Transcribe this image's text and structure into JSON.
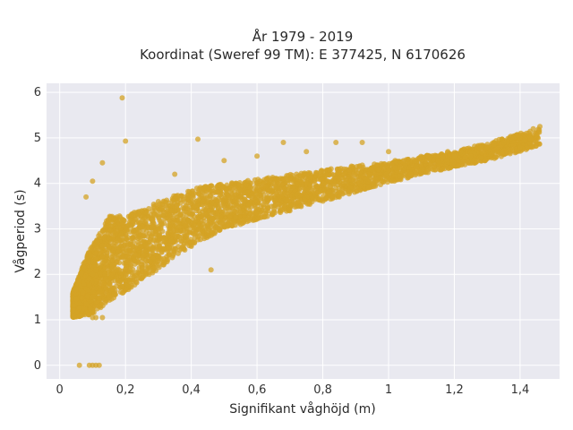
{
  "chart_data": {
    "type": "scatter",
    "title_line1": "År 1979 - 2019",
    "title_line2": "Koordinat (Sweref 99 TM): E 377425, N 6170626",
    "xlabel": "Signifikant våghöjd (m)",
    "ylabel": "Vågperiod (s)",
    "xlim": [
      -0.04,
      1.52
    ],
    "ylim": [
      -0.3,
      6.2
    ],
    "x_ticks": [
      {
        "value": 0,
        "label": "0"
      },
      {
        "value": 0.2,
        "label": "0,2"
      },
      {
        "value": 0.4,
        "label": "0,4"
      },
      {
        "value": 0.6,
        "label": "0,6"
      },
      {
        "value": 0.8,
        "label": "0,8"
      },
      {
        "value": 1.0,
        "label": "1"
      },
      {
        "value": 1.2,
        "label": "1,2"
      },
      {
        "value": 1.4,
        "label": "1,4"
      }
    ],
    "y_ticks": [
      {
        "value": 0,
        "label": "0"
      },
      {
        "value": 1,
        "label": "1"
      },
      {
        "value": 2,
        "label": "2"
      },
      {
        "value": 3,
        "label": "3"
      },
      {
        "value": 4,
        "label": "4"
      },
      {
        "value": 5,
        "label": "5"
      },
      {
        "value": 6,
        "label": "6"
      }
    ],
    "grid": true,
    "colors": {
      "marker": "#d4a326",
      "plot_bg": "#e9e9f0",
      "grid": "#ffffff"
    },
    "series": [
      {
        "values": [
          [
            0.05,
            1.45
          ],
          [
            0.06,
            1.25
          ],
          [
            0.07,
            1.6
          ],
          [
            0.08,
            1.35
          ],
          [
            0.09,
            1.9
          ],
          [
            0.1,
            1.2
          ],
          [
            0.1,
            1.5
          ],
          [
            0.11,
            2.1
          ],
          [
            0.12,
            1.7
          ],
          [
            0.12,
            1.3
          ],
          [
            0.13,
            2.4
          ],
          [
            0.14,
            1.9
          ],
          [
            0.15,
            2.6
          ],
          [
            0.15,
            1.5
          ],
          [
            0.16,
            2.2
          ],
          [
            0.17,
            2.9
          ],
          [
            0.18,
            1.8
          ],
          [
            0.18,
            2.5
          ],
          [
            0.19,
            3.1
          ],
          [
            0.2,
            2.3
          ],
          [
            0.2,
            2.8
          ],
          [
            0.22,
            3.3
          ],
          [
            0.22,
            2.0
          ],
          [
            0.24,
            2.9
          ],
          [
            0.25,
            3.4
          ],
          [
            0.26,
            2.5
          ],
          [
            0.28,
            3.2
          ],
          [
            0.3,
            3.0
          ],
          [
            0.3,
            3.6
          ],
          [
            0.32,
            2.8
          ],
          [
            0.34,
            3.4
          ],
          [
            0.35,
            3.2
          ],
          [
            0.38,
            3.6
          ],
          [
            0.4,
            3.3
          ],
          [
            0.42,
            3.8
          ],
          [
            0.45,
            3.5
          ],
          [
            0.48,
            3.8
          ],
          [
            0.5,
            3.5
          ],
          [
            0.52,
            3.9
          ],
          [
            0.55,
            3.7
          ],
          [
            0.58,
            3.9
          ],
          [
            0.6,
            3.7
          ],
          [
            0.62,
            4.0
          ],
          [
            0.65,
            3.8
          ],
          [
            0.68,
            4.1
          ],
          [
            0.7,
            3.9
          ],
          [
            0.72,
            4.2
          ],
          [
            0.75,
            4.0
          ],
          [
            0.78,
            4.2
          ],
          [
            0.8,
            4.0
          ],
          [
            0.82,
            4.3
          ],
          [
            0.85,
            4.1
          ],
          [
            0.88,
            4.3
          ],
          [
            0.9,
            4.2
          ],
          [
            0.92,
            4.4
          ],
          [
            0.95,
            4.3
          ],
          [
            0.98,
            4.4
          ],
          [
            1.0,
            4.3
          ],
          [
            1.02,
            4.5
          ],
          [
            1.05,
            4.4
          ],
          [
            1.08,
            4.5
          ],
          [
            1.1,
            4.4
          ],
          [
            1.12,
            4.6
          ],
          [
            1.15,
            4.5
          ],
          [
            1.18,
            4.7
          ],
          [
            1.2,
            4.6
          ],
          [
            1.22,
            4.7
          ],
          [
            1.25,
            4.6
          ],
          [
            1.28,
            4.8
          ],
          [
            1.3,
            4.8
          ],
          [
            1.32,
            4.9
          ],
          [
            1.35,
            4.9
          ],
          [
            1.38,
            5.0
          ],
          [
            1.4,
            5.0
          ],
          [
            1.42,
            5.1
          ],
          [
            1.44,
            5.2
          ],
          [
            1.46,
            5.25
          ],
          [
            0.19,
            5.88
          ],
          [
            0.2,
            4.93
          ],
          [
            0.42,
            4.97
          ],
          [
            0.68,
            4.9
          ],
          [
            0.84,
            4.9
          ],
          [
            0.08,
            3.7
          ],
          [
            0.1,
            4.05
          ],
          [
            0.13,
            4.45
          ],
          [
            0.06,
            0.0
          ],
          [
            0.09,
            0.0
          ],
          [
            0.1,
            0.0
          ],
          [
            0.11,
            0.0
          ],
          [
            0.12,
            0.0
          ],
          [
            0.1,
            1.05
          ],
          [
            0.11,
            1.05
          ],
          [
            0.13,
            1.05
          ],
          [
            0.35,
            4.2
          ],
          [
            0.5,
            4.5
          ],
          [
            0.6,
            4.6
          ],
          [
            0.75,
            4.7
          ],
          [
            0.92,
            4.9
          ],
          [
            1.0,
            4.7
          ],
          [
            0.3,
            2.2
          ],
          [
            0.4,
            2.7
          ],
          [
            0.46,
            2.1
          ],
          [
            0.55,
            3.1
          ],
          [
            0.7,
            3.4
          ],
          [
            0.85,
            3.7
          ]
        ]
      }
    ],
    "band": {
      "lower": [
        [
          0.04,
          1.05
        ],
        [
          0.1,
          1.1
        ],
        [
          0.15,
          1.4
        ],
        [
          0.2,
          1.6
        ],
        [
          0.3,
          2.1
        ],
        [
          0.4,
          2.6
        ],
        [
          0.5,
          3.0
        ],
        [
          0.6,
          3.2
        ],
        [
          0.7,
          3.4
        ],
        [
          0.8,
          3.6
        ],
        [
          0.9,
          3.8
        ],
        [
          1.0,
          4.0
        ],
        [
          1.1,
          4.2
        ],
        [
          1.2,
          4.35
        ],
        [
          1.3,
          4.5
        ],
        [
          1.4,
          4.7
        ],
        [
          1.45,
          4.8
        ]
      ],
      "upper": [
        [
          0.04,
          1.6
        ],
        [
          0.08,
          2.4
        ],
        [
          0.12,
          2.9
        ],
        [
          0.15,
          3.3
        ],
        [
          0.2,
          3.3
        ],
        [
          0.3,
          3.6
        ],
        [
          0.4,
          3.9
        ],
        [
          0.5,
          4.0
        ],
        [
          0.6,
          4.1
        ],
        [
          0.7,
          4.2
        ],
        [
          0.8,
          4.3
        ],
        [
          0.9,
          4.4
        ],
        [
          1.0,
          4.45
        ],
        [
          1.1,
          4.6
        ],
        [
          1.2,
          4.7
        ],
        [
          1.3,
          4.9
        ],
        [
          1.45,
          5.2
        ]
      ],
      "density": 4200
    }
  }
}
